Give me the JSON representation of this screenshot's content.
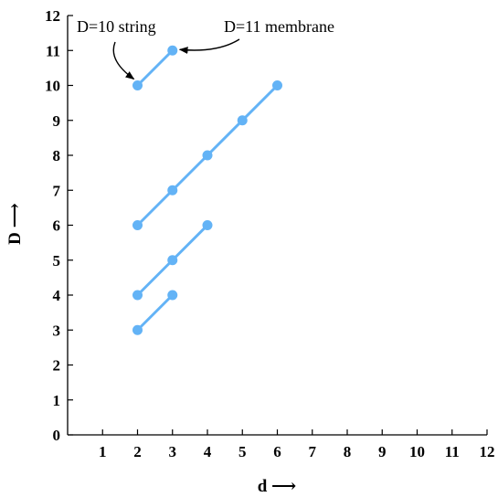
{
  "chart_data": {
    "type": "line",
    "xlabel": "d ⟶",
    "ylabel": "D ⟶",
    "xlim": [
      0,
      12
    ],
    "ylim": [
      0,
      12
    ],
    "xticks": [
      "1",
      "2",
      "3",
      "4",
      "5",
      "6",
      "7",
      "8",
      "9",
      "10",
      "11",
      "12"
    ],
    "yticks": [
      "0",
      "1",
      "2",
      "3",
      "4",
      "5",
      "6",
      "7",
      "8",
      "9",
      "10",
      "11",
      "12"
    ],
    "grid": false,
    "color": "#63b3f6",
    "series": [
      {
        "x": [
          2,
          3
        ],
        "y": [
          3,
          4
        ]
      },
      {
        "x": [
          2,
          3,
          4
        ],
        "y": [
          4,
          5,
          6
        ]
      },
      {
        "x": [
          2,
          3,
          4,
          5,
          6
        ],
        "y": [
          6,
          7,
          8,
          9,
          10
        ]
      },
      {
        "x": [
          2,
          3
        ],
        "y": [
          10,
          11
        ]
      }
    ],
    "annotations": [
      {
        "text": "D=10 string",
        "target": [
          2,
          10
        ]
      },
      {
        "text": "D=11 membrane",
        "target": [
          3,
          11
        ]
      }
    ]
  }
}
